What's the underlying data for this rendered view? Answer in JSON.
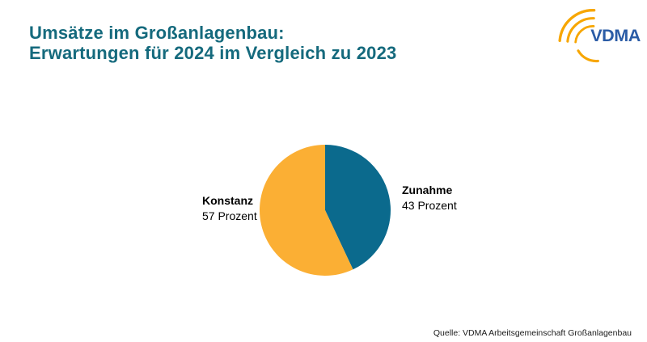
{
  "slide": {
    "title_line1": "Umsätze im Großanlagenbau:",
    "title_line2": "Erwartungen für 2024 im Vergleich zu 2023",
    "title_color": "#156A7D",
    "source": "Quelle: VDMA Arbeitsgemeinschaft Großanlagenbau"
  },
  "logo": {
    "text": "VDMA",
    "text_color": "#2B5CA6",
    "arc_color": "#F7A600"
  },
  "chart_data": {
    "type": "pie",
    "title": "Umsätze im Großanlagenbau: Erwartungen für 2024 im Vergleich zu 2023",
    "slices": [
      {
        "label": "Zunahme",
        "value": 43,
        "value_label": "43 Prozent",
        "color": "#0B6A8D"
      },
      {
        "label": "Konstanz",
        "value": 57,
        "value_label": "57 Prozent",
        "color": "#FBAF34"
      }
    ],
    "start_angle_deg": 0,
    "direction": "clockwise",
    "labels_position": "outside-side-labels",
    "legend": "none",
    "source": "Quelle: VDMA Arbeitsgemeinschaft Großanlagenbau"
  }
}
